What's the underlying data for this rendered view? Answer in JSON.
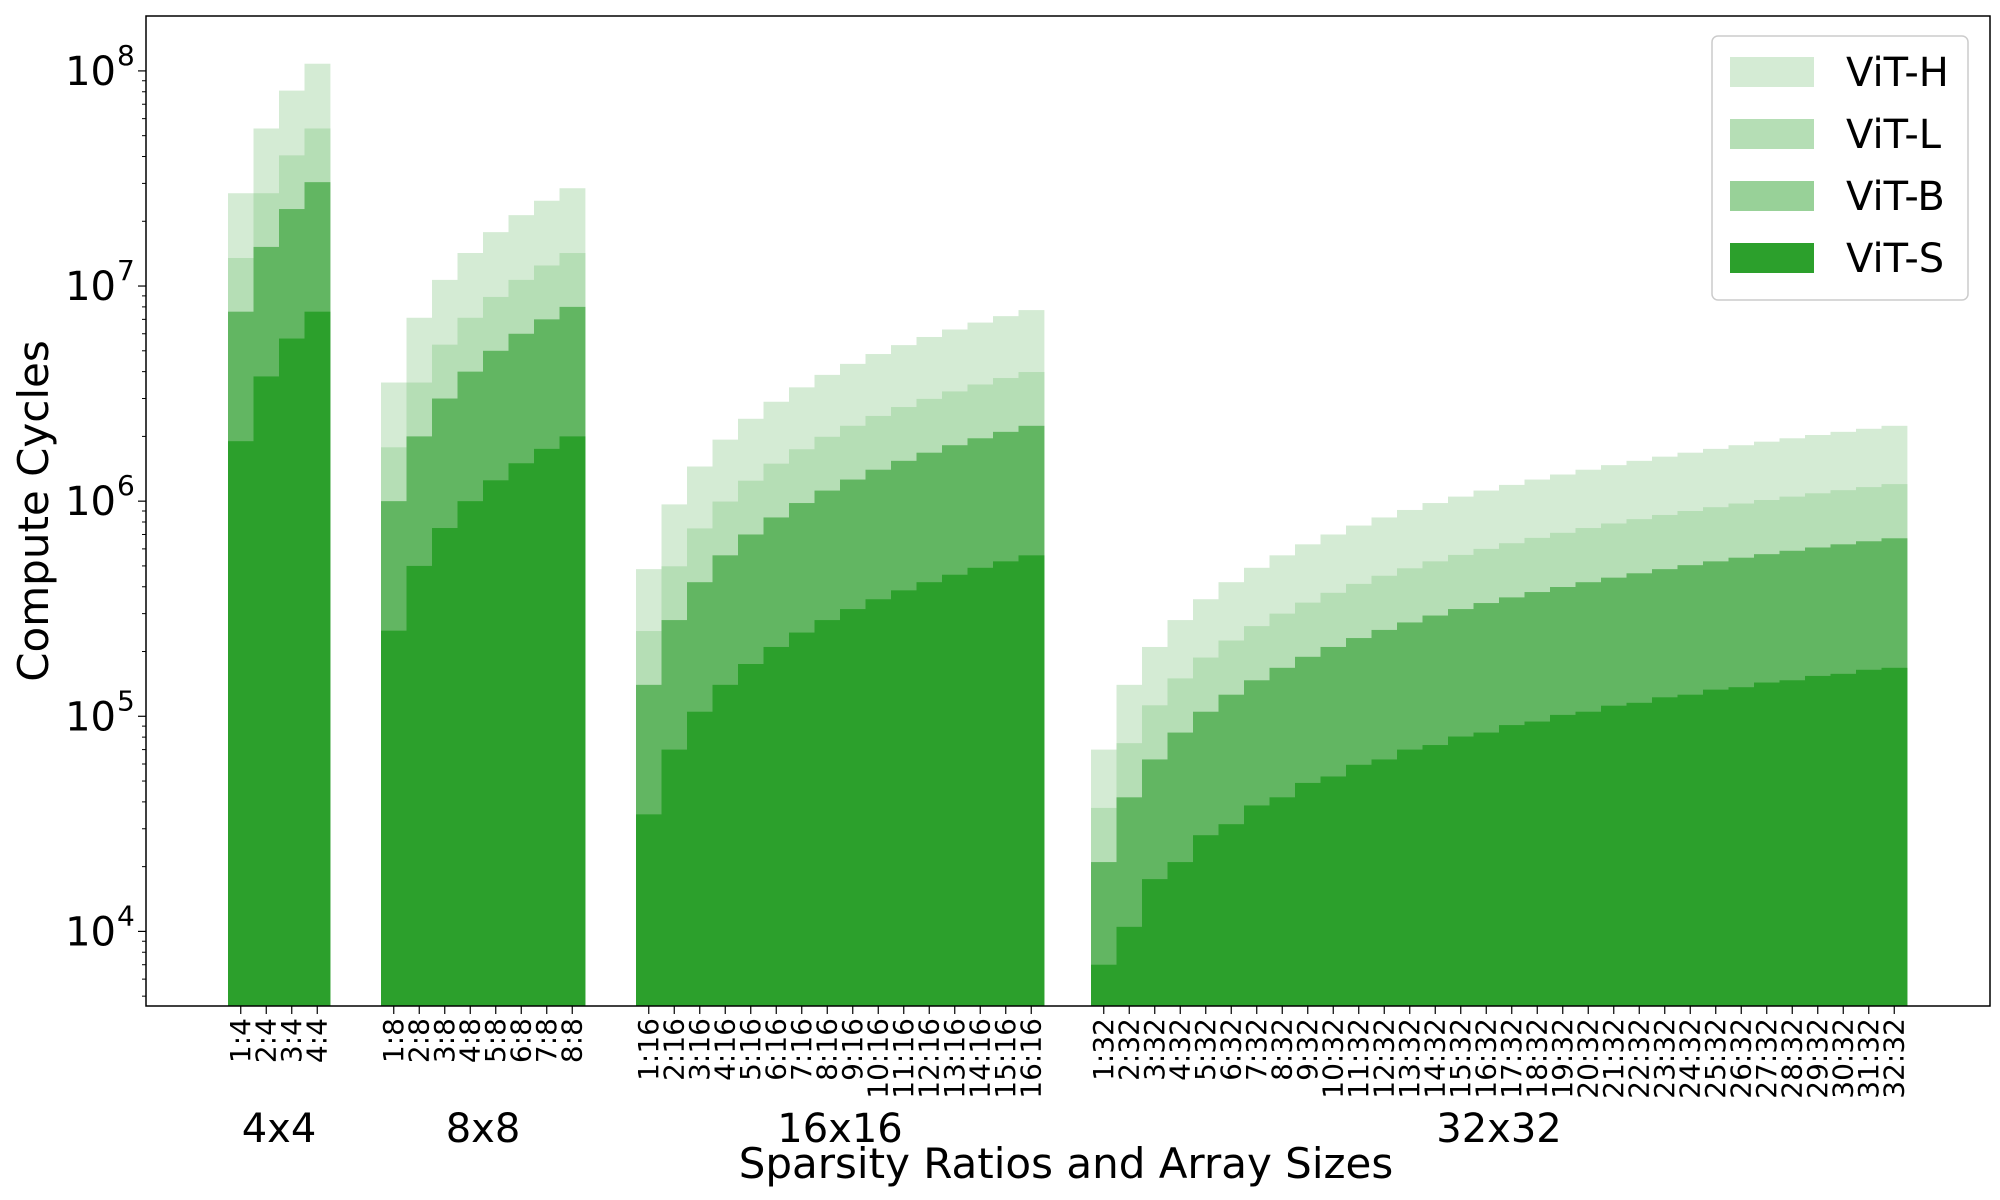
{
  "chart_data": {
    "type": "bar",
    "stacked": false,
    "overlaid": true,
    "y_scale": "log",
    "ylim": [
      4500,
      180000000
    ],
    "ylabel": "Compute Cycles",
    "xlabel": "Sparsity Ratios and Array Sizes",
    "y_ticks": [
      {
        "value": 10000,
        "base": "10",
        "exp": "4"
      },
      {
        "value": 100000,
        "base": "10",
        "exp": "5"
      },
      {
        "value": 1000000,
        "base": "10",
        "exp": "6"
      },
      {
        "value": 10000000,
        "base": "10",
        "exp": "7"
      },
      {
        "value": 100000000,
        "base": "10",
        "exp": "8"
      }
    ],
    "legend": {
      "position": "top-right"
    },
    "series": [
      {
        "name": "ViT-H",
        "color": "#d4ebd4"
      },
      {
        "name": "ViT-L",
        "color": "#b5deb5"
      },
      {
        "name": "ViT-B",
        "color": "#98d198"
      },
      {
        "name": "ViT-S",
        "color": "#2ca02c"
      }
    ],
    "overlay_colors": {
      "ViT-B": "#62b662"
    },
    "groups": [
      {
        "name": "4x4",
        "categories": [
          "1:4",
          "2:4",
          "3:4",
          "4:4"
        ],
        "values": {
          "ViT-S": [
            1900000,
            3800000,
            5700000,
            7600000
          ],
          "ViT-B": [
            7600000,
            15200000,
            22800000,
            30400000
          ],
          "ViT-L": [
            13500000,
            27000000,
            40500000,
            54000000
          ],
          "ViT-H": [
            27000000,
            54000000,
            81000000,
            108000000
          ]
        }
      },
      {
        "name": "8x8",
        "categories": [
          "1:8",
          "2:8",
          "3:8",
          "4:8",
          "5:8",
          "6:8",
          "7:8",
          "8:8"
        ],
        "values": {
          "ViT-S": [
            250000,
            500000,
            750000,
            1000000,
            1250000,
            1500000,
            1750000,
            2000000
          ],
          "ViT-B": [
            1000000,
            2000000,
            3000000,
            4000000,
            5000000,
            6000000,
            7000000,
            8000000
          ],
          "ViT-L": [
            1780000,
            3560000,
            5340000,
            7120000,
            8900000,
            10680000,
            12460000,
            14240000
          ],
          "ViT-H": [
            3560000,
            7120000,
            10680000,
            14240000,
            17800000,
            21360000,
            24920000,
            28480000
          ]
        }
      },
      {
        "name": "16x16",
        "categories": [
          "1:16",
          "2:16",
          "3:16",
          "4:16",
          "5:16",
          "6:16",
          "7:16",
          "8:16",
          "9:16",
          "10:16",
          "11:16",
          "12:16",
          "13:16",
          "14:16",
          "15:16",
          "16:16"
        ],
        "values": {
          "ViT-S": [
            35000,
            70000,
            105000,
            140000,
            175000,
            210000,
            245000,
            280000,
            315000,
            350000,
            385000,
            420000,
            455000,
            490000,
            525000,
            560000
          ],
          "ViT-B": [
            140000,
            280000,
            420000,
            560000,
            700000,
            840000,
            980000,
            1120000,
            1260000,
            1400000,
            1540000,
            1680000,
            1820000,
            1960000,
            2100000,
            2240000
          ],
          "ViT-L": [
            249000,
            498000,
            747000,
            996000,
            1245000,
            1494000,
            1743000,
            1992000,
            2241000,
            2490000,
            2739000,
            2988000,
            3237000,
            3486000,
            3735000,
            3984000
          ],
          "ViT-H": [
            483000,
            966000,
            1449000,
            1932000,
            2415000,
            2898000,
            3381000,
            3864000,
            4347000,
            4830000,
            5313000,
            5796000,
            6279000,
            6762000,
            7245000,
            7728000
          ]
        }
      },
      {
        "name": "32x32",
        "categories": [
          "1:32",
          "2:32",
          "3:32",
          "4:32",
          "5:32",
          "6:32",
          "7:32",
          "8:32",
          "9:32",
          "10:32",
          "11:32",
          "12:32",
          "13:32",
          "14:32",
          "15:32",
          "16:32",
          "17:32",
          "18:32",
          "19:32",
          "20:32",
          "21:32",
          "22:32",
          "23:32",
          "24:32",
          "25:32",
          "26:32",
          "27:32",
          "28:32",
          "29:32",
          "30:32",
          "31:32",
          "32:32"
        ],
        "values": {
          "ViT-S": [
            7000,
            10500,
            17500,
            21000,
            28000,
            31500,
            38500,
            42000,
            49000,
            52500,
            59500,
            63000,
            70000,
            73500,
            80500,
            84000,
            91000,
            94500,
            101500,
            105000,
            112000,
            115500,
            122500,
            126000,
            133000,
            136500,
            143500,
            147000,
            154000,
            157500,
            164500,
            168000
          ],
          "ViT-B": [
            21000,
            42000,
            63000,
            84000,
            105000,
            126000,
            147000,
            168000,
            189000,
            210000,
            231000,
            252000,
            273000,
            294000,
            315000,
            336000,
            357000,
            378000,
            399000,
            420000,
            441000,
            462000,
            483000,
            504000,
            525000,
            546000,
            567000,
            588000,
            609000,
            630000,
            651000,
            672000
          ],
          "ViT-L": [
            37500,
            75000,
            112500,
            150000,
            187500,
            225000,
            262500,
            300000,
            337500,
            375000,
            412500,
            450000,
            487500,
            525000,
            562500,
            600000,
            637500,
            675000,
            712500,
            750000,
            787500,
            825000,
            862500,
            900000,
            937500,
            975000,
            1012500,
            1050000,
            1087500,
            1125000,
            1162500,
            1200000
          ],
          "ViT-H": [
            70000,
            140000,
            210000,
            280000,
            350000,
            420000,
            490000,
            560000,
            630000,
            700000,
            770000,
            840000,
            910000,
            980000,
            1050000,
            1120000,
            1190000,
            1260000,
            1330000,
            1400000,
            1470000,
            1540000,
            1610000,
            1680000,
            1750000,
            1820000,
            1890000,
            1960000,
            2030000,
            2100000,
            2170000,
            2240000
          ]
        }
      }
    ]
  }
}
